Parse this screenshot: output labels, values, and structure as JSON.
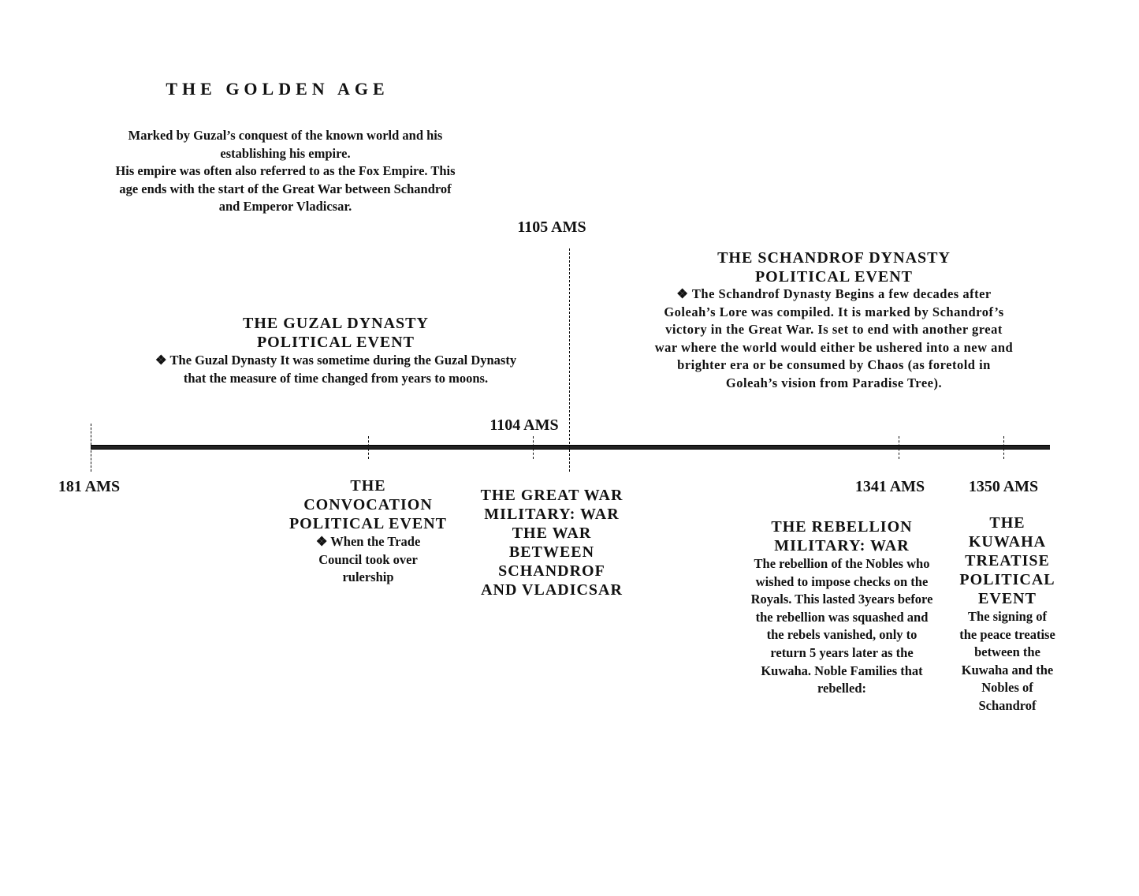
{
  "era": {
    "title": "THE GOLDEN AGE",
    "description": "Marked by Guzal’s conquest of the known world and his\nestablishing his empire.\nHis empire was often also referred to as the Fox Empire. This\nage ends with the start of the Great War between Schandrof\nand Emperor Vladicsar."
  },
  "above": {
    "date_1105": "1105 AMS",
    "date_1104": "1104 AMS",
    "schandrof": {
      "heading": "THE SCHANDROF DYNASTY\nPOLITICAL EVENT",
      "body": "❖ The Schandrof Dynasty Begins a few decades after\nGoleah’s Lore was compiled. It is marked by Schandrof’s\nvictory in the Great War. Is set to end with another great\nwar where the world would either be ushered into a new and\nbrighter era or be consumed by Chaos (as foretold in\nGoleah’s vision from Paradise Tree)."
    },
    "guzal": {
      "heading": "THE GUZAL DYNASTY\nPOLITICAL EVENT",
      "body": "❖ The Guzal Dynasty It was sometime during the Guzal Dynasty\nthat the measure of time changed from years to moons."
    }
  },
  "below": {
    "date_181": "181 AMS",
    "date_1341": "1341 AMS",
    "date_1350": "1350 AMS",
    "convocation": {
      "heading": "THE\nCONVOCATION\nPOLITICAL EVENT",
      "body": "❖ When the Trade\nCouncil took over\nrulership"
    },
    "great_war": {
      "heading": "THE GREAT WAR\nMILITARY: WAR\nTHE WAR\nBETWEEN\nSCHANDROF\nAND VLADICSAR"
    },
    "rebellion": {
      "heading": "THE REBELLION\nMILITARY: WAR",
      "body": "The rebellion of the Nobles who\nwished to impose checks on the\nRoyals. This lasted 3years before\nthe rebellion was squashed and\nthe rebels vanished, only to\nreturn 5 years later as the\nKuwaha.  Noble Families that\nrebelled:"
    },
    "kuwaha": {
      "heading": "THE\nKUWAHA\nTREATISE\nPOLITICAL\nEVENT",
      "body": "The signing of\nthe peace treatise\nbetween the\nKuwaha and the\nNobles of\nSchandrof"
    }
  }
}
